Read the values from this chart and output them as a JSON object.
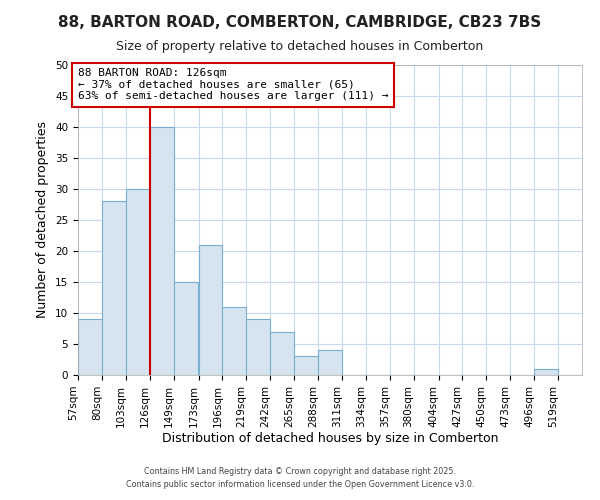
{
  "title1": "88, BARTON ROAD, COMBERTON, CAMBRIDGE, CB23 7BS",
  "title2": "Size of property relative to detached houses in Comberton",
  "xlabel": "Distribution of detached houses by size in Comberton",
  "ylabel": "Number of detached properties",
  "bins": [
    57,
    80,
    103,
    126,
    149,
    173,
    196,
    219,
    242,
    265,
    288,
    311,
    334,
    357,
    380,
    404,
    427,
    450,
    473,
    496,
    519
  ],
  "values": [
    9,
    28,
    30,
    40,
    15,
    21,
    11,
    9,
    7,
    3,
    4,
    0,
    0,
    0,
    0,
    0,
    0,
    0,
    0,
    1,
    0
  ],
  "bar_color": "#d6e4f0",
  "bar_edge_color": "#7aafd4",
  "red_line_x": 126,
  "red_line_color": "#cc0000",
  "annotation_box_color": "#cc0000",
  "annotation_line1": "88 BARTON ROAD: 126sqm",
  "annotation_line2": "← 37% of detached houses are smaller (65)",
  "annotation_line3": "63% of semi-detached houses are larger (111) →",
  "ylim": [
    0,
    50
  ],
  "yticks": [
    0,
    5,
    10,
    15,
    20,
    25,
    30,
    35,
    40,
    45,
    50
  ],
  "background_color": "#ffffff",
  "grid_color": "#c8d8ee",
  "footer_line1": "Contains HM Land Registry data © Crown copyright and database right 2025.",
  "footer_line2": "Contains public sector information licensed under the Open Government Licence v3.0.",
  "title_fontsize": 11,
  "subtitle_fontsize": 9,
  "tick_label_fontsize": 7.5,
  "axis_label_fontsize": 9,
  "annotation_fontsize": 8
}
